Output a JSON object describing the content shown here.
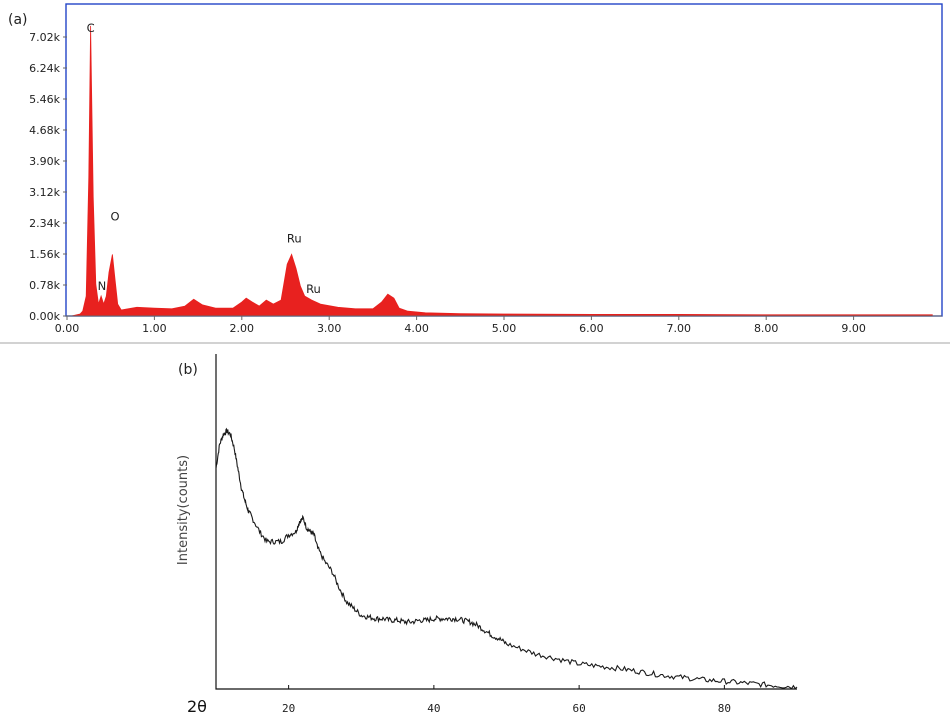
{
  "chart_data": [
    {
      "type": "area",
      "panel_label": "(a)",
      "title": "",
      "xlabel": "",
      "ylabel": "",
      "xlim": [
        0,
        10
      ],
      "ylim": [
        0,
        7.4
      ],
      "x_ticks": [
        0,
        1,
        2,
        3,
        4,
        5,
        6,
        7,
        8,
        9
      ],
      "x_tick_labels": [
        "0.00",
        "1.00",
        "2.00",
        "3.00",
        "4.00",
        "5.00",
        "6.00",
        "7.00",
        "8.00",
        "9.00"
      ],
      "y_ticks": [
        0,
        0.78,
        1.56,
        2.34,
        3.12,
        3.9,
        4.68,
        5.46,
        6.24,
        7.02
      ],
      "y_tick_labels": [
        "0.00k",
        "0.78k",
        "1.56k",
        "2.34k",
        "3.12k",
        "3.90k",
        "4.68k",
        "5.46k",
        "6.24k",
        "7.02k"
      ],
      "series": [
        {
          "x": [
            0.05,
            0.15,
            0.18,
            0.22,
            0.25,
            0.27,
            0.3,
            0.33,
            0.36,
            0.39,
            0.42,
            0.45,
            0.48,
            0.52,
            0.55,
            0.58,
            0.62,
            0.7,
            0.8,
            1.0,
            1.2,
            1.35,
            1.45,
            1.55,
            1.7,
            1.9,
            2.0,
            2.05,
            2.12,
            2.2,
            2.28,
            2.36,
            2.45,
            2.52,
            2.57,
            2.62,
            2.67,
            2.72,
            2.8,
            2.9,
            3.1,
            3.3,
            3.5,
            3.6,
            3.67,
            3.74,
            3.8,
            3.9,
            4.1,
            4.5,
            5.0,
            6.0,
            7.0,
            8.0,
            9.0,
            9.9
          ],
          "y": [
            0.0,
            0.05,
            0.12,
            0.5,
            3.5,
            7.3,
            3.0,
            0.8,
            0.3,
            0.5,
            0.3,
            0.5,
            1.1,
            1.55,
            0.9,
            0.3,
            0.15,
            0.18,
            0.22,
            0.2,
            0.18,
            0.25,
            0.42,
            0.28,
            0.2,
            0.2,
            0.35,
            0.45,
            0.35,
            0.25,
            0.4,
            0.3,
            0.4,
            1.3,
            1.55,
            1.2,
            0.75,
            0.5,
            0.4,
            0.3,
            0.22,
            0.18,
            0.18,
            0.35,
            0.55,
            0.45,
            0.2,
            0.12,
            0.08,
            0.06,
            0.05,
            0.04,
            0.04,
            0.03,
            0.03,
            0.03
          ]
        }
      ],
      "annotations": [
        {
          "text": "C",
          "x": 0.27,
          "y": 7.15
        },
        {
          "text": "O",
          "x": 0.55,
          "y": 2.4
        },
        {
          "text": "N",
          "x": 0.4,
          "y": 0.65
        },
        {
          "text": "Ru",
          "x": 2.6,
          "y": 1.85
        },
        {
          "text": "Ru",
          "x": 2.82,
          "y": 0.58
        }
      ],
      "colors": {
        "fill": "#e8211f",
        "frame": "#2345c8",
        "axis": "#777777"
      }
    },
    {
      "type": "line",
      "panel_label": "(b)",
      "title": "",
      "xlabel": "2θ",
      "ylabel": "Intensity(counts)",
      "xlim": [
        10,
        90
      ],
      "ylim": [
        0,
        100
      ],
      "x_ticks": [
        20,
        40,
        60,
        80
      ],
      "x_tick_labels": [
        "20",
        "40",
        "60",
        "80"
      ],
      "series": [
        {
          "x": [
            10,
            10.5,
            11,
            11.5,
            12,
            12.5,
            13,
            13.5,
            14,
            14.5,
            15,
            16,
            17,
            18,
            19,
            20,
            21,
            21.5,
            22,
            22.5,
            23,
            23.5,
            24,
            25,
            26,
            27,
            28,
            29,
            30,
            31,
            32,
            33,
            34,
            35,
            36,
            37,
            38,
            39,
            40,
            41,
            42,
            43,
            44,
            45,
            46,
            47,
            48,
            49,
            50,
            52,
            54,
            56,
            58,
            60,
            62,
            64,
            66,
            68,
            70,
            72,
            74,
            76,
            78,
            80,
            82,
            84,
            86,
            88,
            90
          ],
          "y": [
            66,
            73,
            76,
            77,
            76,
            72,
            66,
            60,
            56,
            53,
            51,
            47,
            44,
            44,
            44,
            46,
            47,
            50,
            51,
            48,
            47,
            46,
            42,
            38,
            35,
            30,
            26,
            24,
            22,
            21.5,
            21,
            21,
            20.5,
            20.5,
            20,
            20,
            20.5,
            20.5,
            21,
            21,
            21,
            21,
            20.5,
            20,
            19,
            17.5,
            16,
            15,
            13.5,
            12,
            10.5,
            9.5,
            8.5,
            7.5,
            7,
            6.5,
            6,
            5.3,
            4.6,
            4,
            3.5,
            3,
            2.6,
            2.3,
            1.9,
            1.6,
            1.2,
            0.9,
            0.6
          ]
        }
      ],
      "colors": {
        "line": "#1a1a1a",
        "frame": "#111111"
      }
    }
  ]
}
